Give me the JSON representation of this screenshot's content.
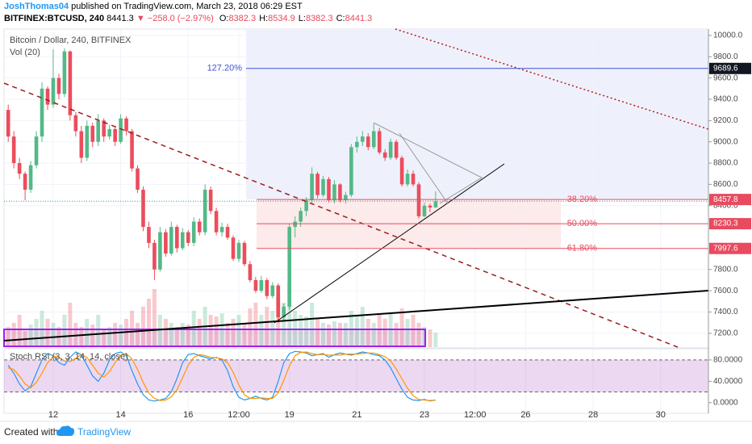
{
  "chart_data": {
    "type": "candlestick",
    "author": "JoshThomas04",
    "published": " published on TradingView.com, March 23, 2018 06:29 EST",
    "symbol": "BITFINEX:BTCUSD, 240",
    "last": "8441.3",
    "change": "▼ −258.0 (−2.97%)",
    "ohlc": [
      {
        "label": "O:",
        "value": "8382.3"
      },
      {
        "label": "H:",
        "value": "8534.9"
      },
      {
        "label": "L:",
        "value": "8382.3"
      },
      {
        "label": "C:",
        "value": "8441.3"
      }
    ],
    "title": "Bitcoin / Dollar, 240, BITFINEX",
    "volume_label": "Vol (20)",
    "stoch_label": "Stoch RSI (3, 3, 14, 14, close)",
    "footer": "Created with",
    "brand": "TradingView",
    "up_color": "#53b987",
    "down_color": "#eb4d5c",
    "grid": true,
    "categories": [
      null,
      null,
      null,
      null,
      null,
      null,
      null,
      null,
      "12",
      null,
      null,
      null,
      null,
      null,
      null,
      null,
      null,
      null,
      null,
      null,
      "14",
      null,
      null,
      null,
      null,
      null,
      null,
      null,
      null,
      null,
      null,
      null,
      "16",
      null,
      null,
      null,
      null,
      null,
      null,
      null,
      null,
      "12:00",
      null,
      null,
      null,
      null,
      null,
      null,
      null,
      null,
      "19",
      null,
      null,
      null,
      null,
      null,
      null,
      null,
      null,
      null,
      null,
      null,
      "21",
      null,
      null,
      null,
      null,
      null,
      null,
      null,
      null,
      null,
      null,
      null,
      "23",
      null,
      null,
      null,
      null,
      null,
      null,
      null,
      null,
      "12:00",
      null,
      null,
      null,
      null,
      null,
      null,
      null,
      null,
      "26",
      null,
      null,
      null,
      null,
      null,
      null,
      null,
      null,
      null,
      null,
      null,
      "28",
      null,
      null,
      null,
      null,
      null,
      null,
      null,
      null,
      null,
      null,
      null,
      "30",
      null,
      null,
      null,
      null,
      null,
      null,
      null,
      null
    ],
    "open": [
      9300,
      9050,
      8800,
      8700,
      8550,
      8780,
      9050,
      9500,
      9350,
      9600,
      9450,
      9850,
      9250,
      9100,
      8850,
      9150,
      9000,
      9200,
      9050,
      9120,
      9000,
      9220,
      9100,
      8750,
      8550,
      8200,
      8050,
      7800,
      8150,
      7950,
      8200,
      8000,
      8150,
      8050,
      8250,
      8150,
      8550,
      8350,
      8150,
      8200,
      8100,
      7900,
      8050,
      7850,
      7700,
      7600,
      7700,
      7550,
      7650,
      7350,
      7450,
      8200,
      8250,
      8350,
      8450,
      8700,
      8500,
      8650,
      8450,
      8600,
      8450,
      8500,
      8950,
      9000,
      9050,
      8950,
      9100,
      8900,
      8850,
      9000,
      8850,
      8600,
      8700,
      8600,
      8300,
      8400,
      8382.3,
      null,
      null,
      null,
      null,
      null,
      null,
      null,
      null,
      null,
      null,
      null,
      null,
      null,
      null,
      null,
      null,
      null,
      null,
      null,
      null,
      null,
      null,
      null,
      null,
      null,
      null,
      null,
      null,
      null,
      null,
      null,
      null,
      null,
      null,
      null,
      null,
      null,
      null,
      null,
      null,
      null,
      null,
      null,
      null,
      null,
      null,
      null,
      null
    ],
    "high": [
      9350,
      9100,
      8850,
      8720,
      8820,
      9100,
      9560,
      9520,
      9870,
      9640,
      9880,
      9860,
      9280,
      9150,
      9200,
      9180,
      9260,
      9220,
      9160,
      9150,
      9260,
      9240,
      9120,
      8780,
      8580,
      8250,
      8080,
      8200,
      8180,
      8250,
      8220,
      8190,
      8170,
      8290,
      8280,
      8600,
      8580,
      8380,
      8240,
      8230,
      8120,
      8080,
      8070,
      7880,
      7730,
      7740,
      7720,
      7680,
      7670,
      7480,
      8230,
      8300,
      8380,
      8480,
      8760,
      8720,
      8680,
      8670,
      8640,
      8610,
      8530,
      8980,
      9050,
      9100,
      9080,
      9170,
      9130,
      8930,
      9030,
      9020,
      8870,
      8740,
      8730,
      8620,
      8430,
      8420,
      8534.9,
      null,
      null,
      null,
      null,
      null,
      null,
      null,
      null,
      null,
      null,
      null,
      null,
      null,
      null,
      null,
      null,
      null,
      null,
      null,
      null,
      null,
      null,
      null,
      null,
      null,
      null,
      null,
      null,
      null,
      null,
      null,
      null,
      null,
      null,
      null,
      null,
      null,
      null,
      null,
      null,
      null,
      null,
      null,
      null,
      null,
      null,
      null,
      null
    ],
    "low": [
      9000,
      8750,
      8650,
      8450,
      8520,
      8750,
      9000,
      9300,
      9320,
      9400,
      9420,
      9200,
      9050,
      8800,
      8820,
      8950,
      8960,
      9000,
      9020,
      8960,
      8980,
      9060,
      8720,
      8520,
      8160,
      8000,
      7700,
      7780,
      7920,
      7930,
      7960,
      7980,
      8020,
      8020,
      8120,
      8120,
      8320,
      8120,
      8110,
      8080,
      7880,
      7870,
      7830,
      7680,
      7580,
      7580,
      7520,
      7530,
      7300,
      7320,
      7420,
      8100,
      8200,
      8300,
      8420,
      8470,
      8480,
      8430,
      8420,
      8430,
      8420,
      8480,
      8900,
      8960,
      8920,
      8930,
      8880,
      8820,
      8830,
      8830,
      8580,
      8580,
      8580,
      8280,
      8290,
      8340,
      8382.3,
      null,
      null,
      null,
      null,
      null,
      null,
      null,
      null,
      null,
      null,
      null,
      null,
      null,
      null,
      null,
      null,
      null,
      null,
      null,
      null,
      null,
      null,
      null,
      null,
      null,
      null,
      null,
      null,
      null,
      null,
      null,
      null,
      null,
      null,
      null,
      null,
      null,
      null,
      null,
      null,
      null,
      null,
      null,
      null,
      null,
      null,
      null,
      null
    ],
    "close": [
      9050,
      8800,
      8700,
      8550,
      8780,
      9050,
      9500,
      9350,
      9600,
      9450,
      9850,
      9250,
      9100,
      8850,
      9150,
      9000,
      9200,
      9050,
      9120,
      9000,
      9220,
      9100,
      8750,
      8550,
      8200,
      8050,
      7800,
      8150,
      7950,
      8200,
      8000,
      8150,
      8050,
      8250,
      8150,
      8550,
      8350,
      8150,
      8200,
      8100,
      7900,
      8050,
      7850,
      7700,
      7600,
      7700,
      7550,
      7650,
      7350,
      7450,
      8200,
      8250,
      8350,
      8450,
      8700,
      8500,
      8650,
      8450,
      8600,
      8450,
      8500,
      8950,
      9000,
      9050,
      8950,
      9100,
      8900,
      8850,
      9000,
      8850,
      8600,
      8700,
      8600,
      8300,
      8400,
      8382.3,
      8441.3,
      null,
      null,
      null,
      null,
      null,
      null,
      null,
      null,
      null,
      null,
      null,
      null,
      null,
      null,
      null,
      null,
      null,
      null,
      null,
      null,
      null,
      null,
      null,
      null,
      null,
      null,
      null,
      null,
      null,
      null,
      null,
      null,
      null,
      null,
      null,
      null,
      null,
      null,
      null,
      null,
      null,
      null,
      null,
      null,
      null,
      null,
      null,
      null
    ],
    "volume": [
      25,
      30,
      40,
      20,
      28,
      35,
      45,
      35,
      30,
      25,
      40,
      55,
      30,
      25,
      35,
      28,
      40,
      22,
      25,
      30,
      28,
      35,
      45,
      30,
      50,
      60,
      72,
      40,
      35,
      30,
      25,
      30,
      28,
      45,
      35,
      50,
      40,
      38,
      42,
      30,
      35,
      40,
      30,
      48,
      55,
      40,
      50,
      45,
      65,
      55,
      80,
      45,
      40,
      38,
      55,
      35,
      30,
      28,
      32,
      30,
      30,
      45,
      38,
      50,
      35,
      30,
      40,
      35,
      42,
      30,
      48,
      35,
      40,
      30,
      25,
      22,
      18,
      null,
      null,
      null,
      null,
      null,
      null,
      null,
      null,
      null,
      null,
      null,
      null,
      null,
      null,
      null,
      null,
      null,
      null,
      null,
      null,
      null,
      null,
      null,
      null,
      null,
      null,
      null,
      null,
      null,
      null,
      null,
      null,
      null,
      null,
      null,
      null,
      null,
      null,
      null,
      null,
      null,
      null,
      null,
      null,
      null,
      null,
      null,
      null
    ],
    "vlim": [
      0,
      100
    ],
    "ylim": [
      7070,
      10060
    ],
    "yticks": [
      {
        "value": 7200,
        "label": "7200.0"
      },
      {
        "value": 7400,
        "label": "7400.0"
      },
      {
        "value": 7600,
        "label": "7600.0"
      },
      {
        "value": 7800,
        "label": "7800.0"
      },
      {
        "value": 8400,
        "label": "8400.0"
      },
      {
        "value": 8600,
        "label": "8600.0"
      },
      {
        "value": 8800,
        "label": "8800.0"
      },
      {
        "value": 9000,
        "label": "9000.0"
      },
      {
        "value": 9200,
        "label": "9200.0"
      },
      {
        "value": 9400,
        "label": "9400.0"
      },
      {
        "value": 9600,
        "label": "9600.0"
      },
      {
        "value": 9800,
        "label": "9800.0"
      },
      {
        "value": 10000,
        "label": "10000.0"
      }
    ],
    "fib_levels": [
      {
        "label": "127.20%",
        "price": 9689.6,
        "color": "#3f51d8"
      },
      {
        "label": "38.20%",
        "price": 8457.8,
        "color": "#e84a5f"
      },
      {
        "label": "50.00%",
        "price": 8230.3,
        "color": "#e84a5f"
      },
      {
        "label": "61.80%",
        "price": 7997.6,
        "color": "#e84a5f"
      }
    ],
    "stoch": {
      "k_color": "#2196f3",
      "d_color": "#ff9800",
      "k": [
        70,
        55,
        35,
        22,
        30,
        55,
        80,
        92,
        88,
        75,
        70,
        85,
        95,
        90,
        70,
        50,
        40,
        55,
        80,
        92,
        95,
        88,
        60,
        35,
        15,
        5,
        3,
        5,
        8,
        20,
        45,
        75,
        90,
        92,
        88,
        85,
        82,
        85,
        80,
        60,
        30,
        10,
        5,
        8,
        12,
        8,
        5,
        10,
        40,
        75,
        92,
        96,
        95,
        93,
        88,
        90,
        92,
        85,
        90,
        93,
        91,
        89,
        92,
        95,
        93,
        90,
        88,
        80,
        65,
        45,
        25,
        10,
        5,
        4,
        6,
        3,
        5,
        null,
        null,
        null,
        null,
        null,
        null,
        null,
        null,
        null,
        null,
        null,
        null,
        null,
        null,
        null,
        null,
        null,
        null,
        null,
        null,
        null,
        null,
        null,
        null,
        null,
        null,
        null,
        null,
        null,
        null,
        null,
        null,
        null,
        null,
        null,
        null,
        null,
        null,
        null,
        null,
        null,
        null,
        null,
        null,
        null,
        null,
        null,
        null
      ],
      "d": [
        65,
        62,
        50,
        35,
        28,
        38,
        55,
        75,
        87,
        85,
        78,
        77,
        83,
        90,
        85,
        70,
        55,
        48,
        58,
        75,
        89,
        92,
        82,
        62,
        38,
        18,
        8,
        4,
        5,
        11,
        24,
        47,
        70,
        85,
        90,
        88,
        85,
        84,
        82,
        75,
        57,
        33,
        15,
        8,
        8,
        9,
        8,
        8,
        18,
        42,
        69,
        88,
        94,
        95,
        92,
        90,
        90,
        89,
        89,
        89,
        91,
        91,
        91,
        92,
        93,
        93,
        90,
        86,
        78,
        63,
        45,
        27,
        13,
        6,
        5,
        4,
        5,
        null,
        null,
        null,
        null,
        null,
        null,
        null,
        null,
        null,
        null,
        null,
        null,
        null,
        null,
        null,
        null,
        null,
        null,
        null,
        null,
        null,
        null,
        null,
        null,
        null,
        null,
        null,
        null,
        null,
        null,
        null,
        null,
        null,
        null,
        null,
        null,
        null,
        null,
        null,
        null,
        null,
        null,
        null,
        null,
        null,
        null,
        null,
        null
      ],
      "ylim": [
        -20,
        101
      ],
      "bands": [
        20,
        80
      ],
      "yticks": [
        {
          "value": 0,
          "label": "0.0000"
        },
        {
          "value": 40,
          "label": "40.0000"
        },
        {
          "value": 80,
          "label": "80.0000"
        }
      ]
    }
  }
}
